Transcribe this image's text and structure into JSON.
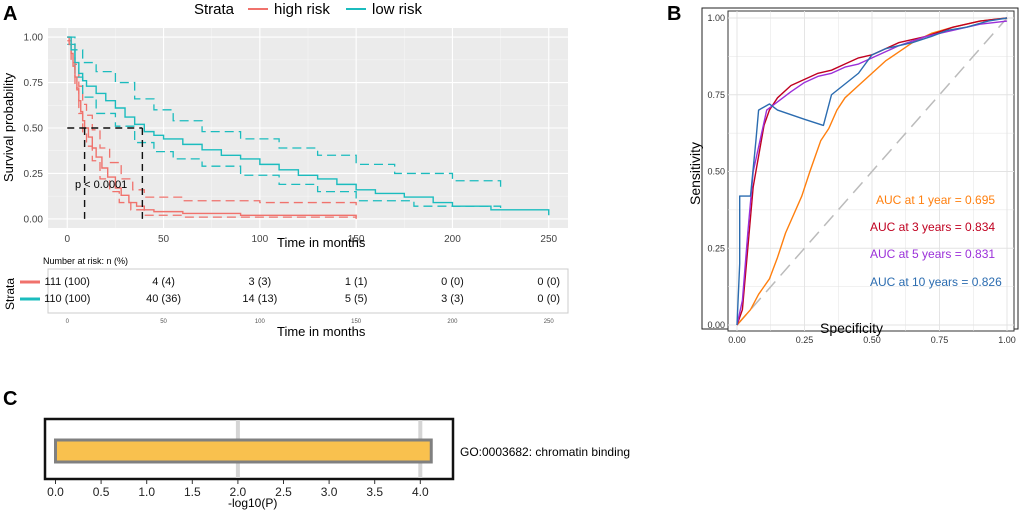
{
  "panel_labels": {
    "a": "A",
    "b": "B",
    "c": "C"
  },
  "colors": {
    "high_risk": "#f0726c",
    "low_risk": "#1bbcbe",
    "auc_1": "#ff7f0e",
    "auc_3": "#c00020",
    "auc_5": "#9b30d9",
    "auc_10": "#2b6cb0",
    "bar_fill": "#f9c14e",
    "panel_bg": "#ebebeb"
  },
  "chart_data": [
    {
      "type": "line",
      "panel": "A",
      "title": "",
      "legend": {
        "title": "Strata",
        "position": "top",
        "entries": [
          "high risk",
          "low risk"
        ]
      },
      "xlabel": "Time in months",
      "ylabel": "Survival probability",
      "xlim": [
        -10,
        260
      ],
      "ylim": [
        -0.05,
        1.05
      ],
      "x_ticks": [
        0,
        50,
        100,
        150,
        200,
        250
      ],
      "y_ticks": [
        "0.00",
        "0.25",
        "0.50",
        "0.75",
        "1.00"
      ],
      "annotation": "p < 0.0001",
      "median_survival": {
        "high risk": 9,
        "low risk": 39
      },
      "series": [
        {
          "name": "high risk",
          "points": [
            [
              0,
              1.0
            ],
            [
              1,
              0.96
            ],
            [
              2,
              0.91
            ],
            [
              3,
              0.84
            ],
            [
              4,
              0.78
            ],
            [
              5,
              0.71
            ],
            [
              6,
              0.65
            ],
            [
              7,
              0.59
            ],
            [
              8,
              0.54
            ],
            [
              9,
              0.5
            ],
            [
              11,
              0.45
            ],
            [
              13,
              0.39
            ],
            [
              15,
              0.34
            ],
            [
              18,
              0.28
            ],
            [
              21,
              0.23
            ],
            [
              25,
              0.17
            ],
            [
              28,
              0.13
            ],
            [
              32,
              0.09
            ],
            [
              36,
              0.07
            ],
            [
              40,
              0.05
            ],
            [
              45,
              0.04
            ],
            [
              60,
              0.03
            ],
            [
              90,
              0.02
            ],
            [
              150,
              0.01
            ]
          ],
          "lower": [
            [
              0,
              0.98
            ],
            [
              2,
              0.86
            ],
            [
              4,
              0.72
            ],
            [
              6,
              0.58
            ],
            [
              8,
              0.47
            ],
            [
              10,
              0.4
            ],
            [
              13,
              0.32
            ],
            [
              17,
              0.22
            ],
            [
              22,
              0.15
            ],
            [
              27,
              0.09
            ],
            [
              33,
              0.05
            ],
            [
              40,
              0.02
            ],
            [
              60,
              0.01
            ],
            [
              150,
              0.0
            ]
          ],
          "upper": [
            [
              0,
              1.0
            ],
            [
              2,
              0.96
            ],
            [
              4,
              0.85
            ],
            [
              6,
              0.73
            ],
            [
              8,
              0.63
            ],
            [
              10,
              0.57
            ],
            [
              13,
              0.49
            ],
            [
              17,
              0.39
            ],
            [
              22,
              0.31
            ],
            [
              28,
              0.22
            ],
            [
              34,
              0.16
            ],
            [
              40,
              0.12
            ],
            [
              60,
              0.1
            ],
            [
              100,
              0.09
            ],
            [
              150,
              0.07
            ]
          ]
        },
        {
          "name": "low risk",
          "points": [
            [
              0,
              1.0
            ],
            [
              2,
              0.93
            ],
            [
              4,
              0.86
            ],
            [
              6,
              0.8
            ],
            [
              8,
              0.76
            ],
            [
              10,
              0.73
            ],
            [
              15,
              0.69
            ],
            [
              20,
              0.65
            ],
            [
              25,
              0.61
            ],
            [
              30,
              0.56
            ],
            [
              35,
              0.52
            ],
            [
              40,
              0.48
            ],
            [
              45,
              0.46
            ],
            [
              50,
              0.44
            ],
            [
              60,
              0.41
            ],
            [
              70,
              0.38
            ],
            [
              80,
              0.35
            ],
            [
              90,
              0.33
            ],
            [
              100,
              0.3
            ],
            [
              110,
              0.27
            ],
            [
              120,
              0.24
            ],
            [
              130,
              0.22
            ],
            [
              140,
              0.19
            ],
            [
              150,
              0.16
            ],
            [
              160,
              0.14
            ],
            [
              175,
              0.12
            ],
            [
              190,
              0.09
            ],
            [
              200,
              0.07
            ],
            [
              220,
              0.05
            ],
            [
              225,
              0.05
            ],
            [
              250,
              0.02
            ]
          ],
          "lower": [
            [
              0,
              0.96
            ],
            [
              4,
              0.78
            ],
            [
              8,
              0.67
            ],
            [
              15,
              0.58
            ],
            [
              25,
              0.51
            ],
            [
              35,
              0.42
            ],
            [
              45,
              0.37
            ],
            [
              55,
              0.33
            ],
            [
              70,
              0.29
            ],
            [
              90,
              0.24
            ],
            [
              110,
              0.19
            ],
            [
              130,
              0.15
            ],
            [
              150,
              0.1
            ],
            [
              180,
              0.07
            ],
            [
              225,
              0.05
            ]
          ],
          "upper": [
            [
              0,
              1.0
            ],
            [
              4,
              0.93
            ],
            [
              8,
              0.86
            ],
            [
              15,
              0.81
            ],
            [
              25,
              0.75
            ],
            [
              35,
              0.66
            ],
            [
              45,
              0.6
            ],
            [
              55,
              0.54
            ],
            [
              70,
              0.48
            ],
            [
              90,
              0.44
            ],
            [
              110,
              0.39
            ],
            [
              130,
              0.35
            ],
            [
              150,
              0.3
            ],
            [
              170,
              0.25
            ],
            [
              200,
              0.21
            ],
            [
              225,
              0.16
            ]
          ]
        }
      ]
    },
    {
      "type": "table",
      "panel": "A",
      "title": "Number at risk: n (%)",
      "ylabel": "Strata",
      "xlabel": "Time in months",
      "columns": [
        0,
        50,
        100,
        150,
        200,
        250
      ],
      "rows": [
        {
          "name": "high risk",
          "cells": [
            "111 (100)",
            "4 (4)",
            "3 (3)",
            "1 (1)",
            "0 (0)",
            "0 (0)"
          ]
        },
        {
          "name": "low risk",
          "cells": [
            "110 (100)",
            "40 (36)",
            "14 (13)",
            "5 (5)",
            "3 (3)",
            "0 (0)"
          ]
        }
      ]
    },
    {
      "type": "line",
      "panel": "B",
      "title": "",
      "xlabel": "Specificity",
      "ylabel": "Sensitivity",
      "xlim": [
        0,
        1
      ],
      "ylim": [
        0,
        1
      ],
      "x_ticks": [
        "0.00",
        "0.25",
        "0.50",
        "0.75",
        "1.00"
      ],
      "y_ticks": [
        "0.00",
        "0.25",
        "0.50",
        "0.75",
        "1.00"
      ],
      "annotations": [
        "AUC at  1 year = 0.695",
        "AUC at  3 years = 0.834",
        "AUC at  5 years = 0.831",
        "AUC at 10 years = 0.826"
      ],
      "series": [
        {
          "name": "AUC at  1 year = 0.695",
          "points": [
            [
              0,
              0
            ],
            [
              0.02,
              0.02
            ],
            [
              0.05,
              0.05
            ],
            [
              0.08,
              0.1
            ],
            [
              0.12,
              0.15
            ],
            [
              0.15,
              0.22
            ],
            [
              0.18,
              0.3
            ],
            [
              0.21,
              0.36
            ],
            [
              0.24,
              0.42
            ],
            [
              0.27,
              0.5
            ],
            [
              0.29,
              0.55
            ],
            [
              0.31,
              0.6
            ],
            [
              0.34,
              0.64
            ],
            [
              0.37,
              0.7
            ],
            [
              0.4,
              0.74
            ],
            [
              0.45,
              0.78
            ],
            [
              0.5,
              0.82
            ],
            [
              0.55,
              0.86
            ],
            [
              0.6,
              0.89
            ],
            [
              0.65,
              0.92
            ],
            [
              0.72,
              0.95
            ],
            [
              0.8,
              0.97
            ],
            [
              0.9,
              0.99
            ],
            [
              1,
              1
            ]
          ]
        },
        {
          "name": "AUC at  3 years = 0.834",
          "points": [
            [
              0,
              0
            ],
            [
              0.02,
              0.05
            ],
            [
              0.04,
              0.25
            ],
            [
              0.06,
              0.45
            ],
            [
              0.08,
              0.55
            ],
            [
              0.1,
              0.65
            ],
            [
              0.12,
              0.7
            ],
            [
              0.15,
              0.74
            ],
            [
              0.2,
              0.78
            ],
            [
              0.25,
              0.8
            ],
            [
              0.3,
              0.82
            ],
            [
              0.35,
              0.83
            ],
            [
              0.4,
              0.85
            ],
            [
              0.45,
              0.87
            ],
            [
              0.5,
              0.88
            ],
            [
              0.55,
              0.9
            ],
            [
              0.6,
              0.92
            ],
            [
              0.7,
              0.94
            ],
            [
              0.8,
              0.97
            ],
            [
              0.9,
              0.99
            ],
            [
              1,
              1
            ]
          ]
        },
        {
          "name": "AUC at  5 years = 0.831",
          "points": [
            [
              0,
              0
            ],
            [
              0.02,
              0.08
            ],
            [
              0.04,
              0.3
            ],
            [
              0.06,
              0.5
            ],
            [
              0.09,
              0.62
            ],
            [
              0.11,
              0.7
            ],
            [
              0.14,
              0.72
            ],
            [
              0.2,
              0.76
            ],
            [
              0.25,
              0.79
            ],
            [
              0.3,
              0.81
            ],
            [
              0.35,
              0.82
            ],
            [
              0.4,
              0.84
            ],
            [
              0.45,
              0.85
            ],
            [
              0.5,
              0.87
            ],
            [
              0.55,
              0.89
            ],
            [
              0.6,
              0.91
            ],
            [
              0.7,
              0.94
            ],
            [
              0.8,
              0.96
            ],
            [
              0.9,
              0.98
            ],
            [
              1,
              0.99
            ]
          ]
        },
        {
          "name": "AUC at 10 years = 0.826",
          "points": [
            [
              0,
              0
            ],
            [
              0.01,
              0.2
            ],
            [
              0.01,
              0.42
            ],
            [
              0.05,
              0.42
            ],
            [
              0.07,
              0.6
            ],
            [
              0.08,
              0.7
            ],
            [
              0.12,
              0.72
            ],
            [
              0.15,
              0.7
            ],
            [
              0.25,
              0.67
            ],
            [
              0.32,
              0.65
            ],
            [
              0.35,
              0.75
            ],
            [
              0.45,
              0.82
            ],
            [
              0.5,
              0.88
            ],
            [
              0.55,
              0.9
            ],
            [
              0.65,
              0.92
            ],
            [
              0.72,
              0.94
            ],
            [
              0.78,
              0.96
            ],
            [
              0.85,
              0.97
            ],
            [
              0.93,
              0.99
            ],
            [
              1,
              1
            ]
          ]
        }
      ]
    },
    {
      "type": "bar",
      "panel": "C",
      "orientation": "horizontal",
      "categories": [
        "GO:0003682: chromatin binding"
      ],
      "values": [
        4.12
      ],
      "xlabel": "-log10(P)",
      "xlim": [
        0,
        4.3
      ],
      "x_ticks": [
        "0.0",
        "0.5",
        "1.0",
        "1.5",
        "2.0",
        "2.5",
        "3.0",
        "3.5",
        "4.0"
      ]
    }
  ]
}
